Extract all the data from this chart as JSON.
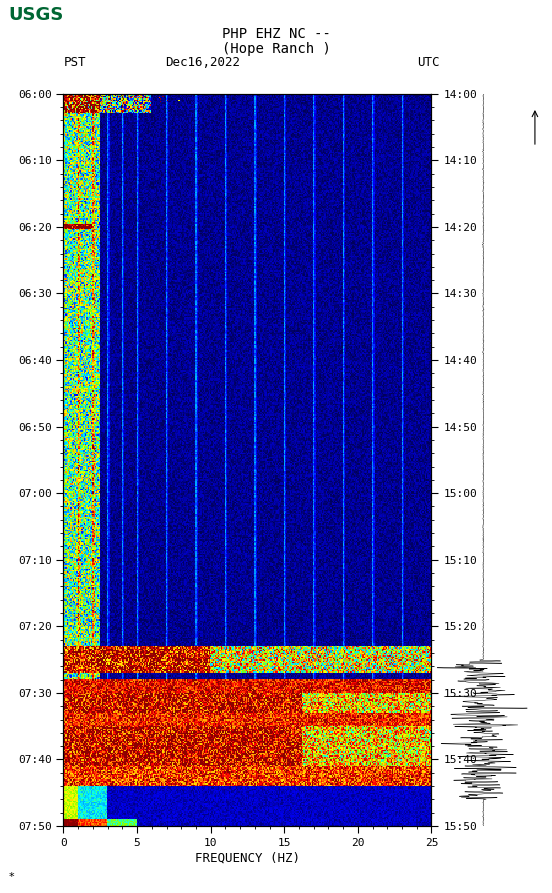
{
  "title_line1": "PHP EHZ NC --",
  "title_line2": "(Hope Ranch )",
  "left_label": "PST",
  "date_label": "Dec16,2022",
  "right_label": "UTC",
  "xlabel": "FREQUENCY (HZ)",
  "freq_min": 0,
  "freq_max": 25,
  "pst_ticks": [
    "06:00",
    "06:10",
    "06:20",
    "06:30",
    "06:40",
    "06:50",
    "07:00",
    "07:10",
    "07:20",
    "07:30",
    "07:40",
    "07:50"
  ],
  "utc_ticks": [
    "14:00",
    "14:10",
    "14:20",
    "14:30",
    "14:40",
    "14:50",
    "15:00",
    "15:10",
    "15:20",
    "15:30",
    "15:40",
    "15:50"
  ],
  "freq_ticks": [
    0,
    5,
    10,
    15,
    20,
    25
  ],
  "bg_color": "#ffffff",
  "total_minutes": 110
}
